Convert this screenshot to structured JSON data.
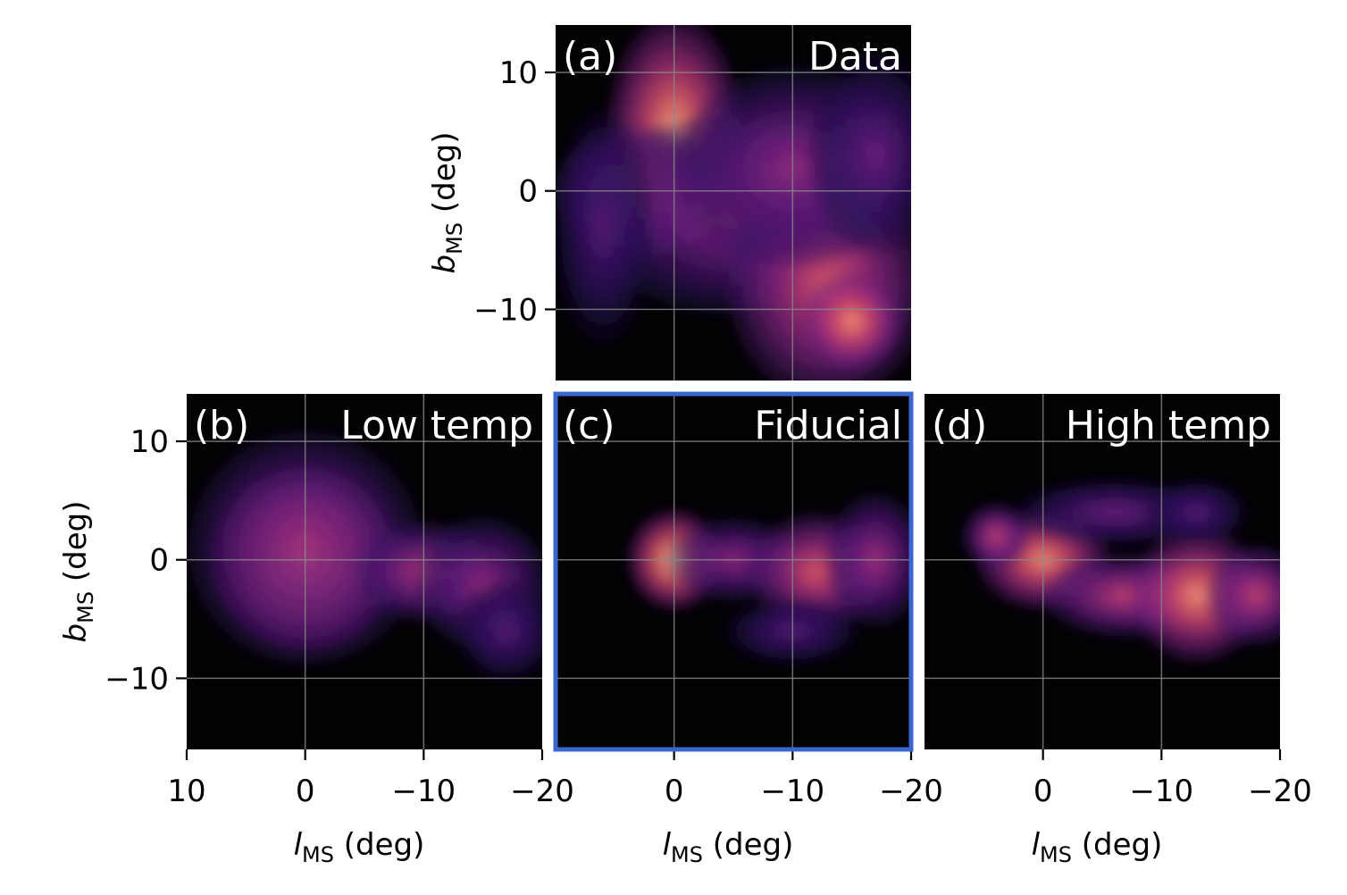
{
  "chart_data": [
    {
      "type": "heatmap",
      "panel": "(a)",
      "title": "Data",
      "xlim": [
        10,
        -20
      ],
      "ylim": [
        -16,
        14
      ],
      "xticks": [],
      "yticks": [
        10,
        0,
        -10
      ],
      "xlabel": "",
      "ylabel_main": "b",
      "ylabel_sub": "MS",
      "ylabel_unit": " (deg)",
      "colormap": "magma",
      "grid": true,
      "features": [
        {
          "x": 0,
          "y": 5,
          "sx": 4,
          "sy": 7,
          "w": 0.9
        },
        {
          "x": 3,
          "y": 0,
          "sx": 5,
          "sy": 4,
          "w": 0.6
        },
        {
          "x": -5,
          "y": -2,
          "sx": 9,
          "sy": 6,
          "w": 0.45
        },
        {
          "x": -13,
          "y": -8,
          "sx": 6,
          "sy": 7,
          "w": 0.7
        },
        {
          "x": -15,
          "y": -11,
          "sx": 3,
          "sy": 3,
          "w": 0.85
        },
        {
          "x": -10,
          "y": 2,
          "sx": 7,
          "sy": 6,
          "w": 0.45
        },
        {
          "x": -17,
          "y": 3,
          "sx": 4,
          "sy": 6,
          "w": 0.35
        },
        {
          "x": 6,
          "y": -3,
          "sx": 3,
          "sy": 7,
          "w": 0.3
        }
      ]
    },
    {
      "type": "heatmap",
      "panel": "(b)",
      "title": "Low temp",
      "xlim": [
        10,
        -20
      ],
      "ylim": [
        -16,
        14
      ],
      "xticks": [
        10,
        0,
        -10,
        -20
      ],
      "yticks": [
        10,
        0,
        -10
      ],
      "xlabel_main": "l",
      "xlabel_sub": "MS",
      "xlabel_unit": " (deg)",
      "ylabel_main": "b",
      "ylabel_sub": "MS",
      "ylabel_unit": " (deg)",
      "colormap": "magma",
      "grid": true,
      "features": [
        {
          "x": 0,
          "y": 0,
          "sx": 5.5,
          "sy": 5.5,
          "w": 1.0
        },
        {
          "x": 0,
          "y": 1,
          "sx": 7,
          "sy": 7,
          "w": 0.5
        },
        {
          "x": -10,
          "y": -1,
          "sx": 4,
          "sy": 3,
          "w": 0.55
        },
        {
          "x": -15,
          "y": -2,
          "sx": 4,
          "sy": 4,
          "w": 0.45
        },
        {
          "x": -17,
          "y": -6,
          "sx": 3,
          "sy": 3,
          "w": 0.3
        }
      ]
    },
    {
      "type": "heatmap",
      "panel": "(c)",
      "title": "Fiducial",
      "highlighted": true,
      "xlim": [
        10,
        -20
      ],
      "ylim": [
        -16,
        14
      ],
      "xticks": [
        0,
        -10,
        -20
      ],
      "yticks": [],
      "xlabel_main": "l",
      "xlabel_sub": "MS",
      "xlabel_unit": " (deg)",
      "colormap": "magma",
      "grid": true,
      "features": [
        {
          "x": 0,
          "y": 0,
          "sx": 2.8,
          "sy": 3,
          "w": 1.0
        },
        {
          "x": -5,
          "y": 0,
          "sx": 4,
          "sy": 2.5,
          "w": 0.45
        },
        {
          "x": -12,
          "y": -1,
          "sx": 4,
          "sy": 3.5,
          "w": 0.7
        },
        {
          "x": -17,
          "y": 0,
          "sx": 3,
          "sy": 4,
          "w": 0.5
        },
        {
          "x": -10,
          "y": -6,
          "sx": 4,
          "sy": 2,
          "w": 0.3
        }
      ]
    },
    {
      "type": "heatmap",
      "panel": "(d)",
      "title": "High temp",
      "xlim": [
        10,
        -20
      ],
      "ylim": [
        -16,
        14
      ],
      "xticks": [
        0,
        -10,
        -20
      ],
      "yticks": [],
      "xlabel_main": "l",
      "xlabel_sub": "MS",
      "xlabel_unit": " (deg)",
      "colormap": "magma",
      "grid": true,
      "features": [
        {
          "x": 0,
          "y": 0,
          "sx": 4,
          "sy": 3,
          "w": 0.85
        },
        {
          "x": 4,
          "y": 2,
          "sx": 2,
          "sy": 2,
          "w": 0.6
        },
        {
          "x": -7,
          "y": -3,
          "sx": 5,
          "sy": 2.5,
          "w": 0.6
        },
        {
          "x": -13,
          "y": -3,
          "sx": 4,
          "sy": 4,
          "w": 0.85
        },
        {
          "x": -18,
          "y": -3,
          "sx": 3,
          "sy": 3,
          "w": 0.6
        },
        {
          "x": -6,
          "y": 4,
          "sx": 6,
          "sy": 2,
          "w": 0.35
        },
        {
          "x": -13,
          "y": 4,
          "sx": 3,
          "sy": 2,
          "w": 0.3
        }
      ]
    }
  ],
  "colors": {
    "background": "#020104",
    "highlight_border": "#3b66d0",
    "grid": "#888888",
    "colormap_stops": [
      "#000004",
      "#2c115f",
      "#721f81",
      "#b73779",
      "#f1605d",
      "#feb078",
      "#fcfdbf"
    ]
  }
}
